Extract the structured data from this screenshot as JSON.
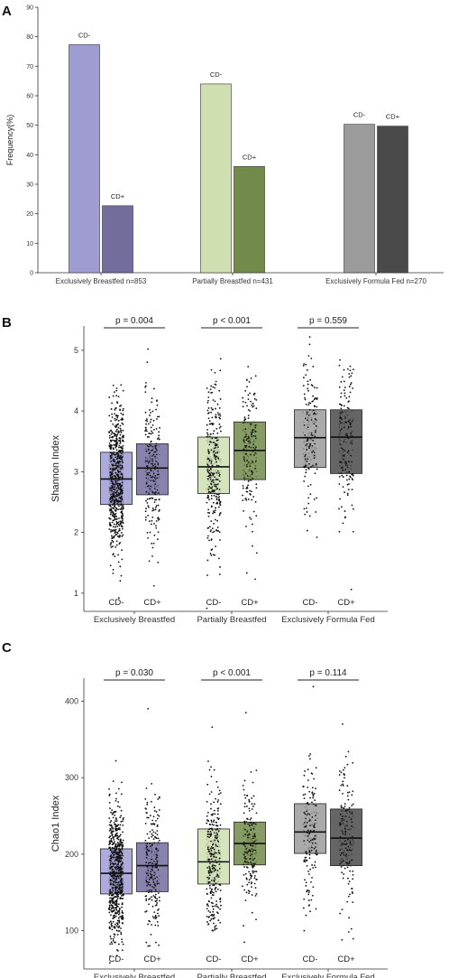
{
  "chart_data": [
    {
      "panel": "A",
      "type": "bar",
      "ylabel": "Frequency(%)",
      "ylim": [
        0,
        90
      ],
      "yticks": [
        0,
        10,
        20,
        30,
        40,
        50,
        60,
        70,
        80,
        90
      ],
      "categories": [
        "Exclusively Breastfed n=853",
        "Partially Breastfed n=431",
        "Exclusively Formula Fed n=270"
      ],
      "series": [
        {
          "name": "CD-",
          "values": [
            77.3,
            64.0,
            50.3
          ],
          "colors": [
            "#9f9cd2",
            "#cfdfb2",
            "#9b9b9b"
          ]
        },
        {
          "name": "CD+",
          "values": [
            22.7,
            36.0,
            49.7
          ],
          "colors": [
            "#736d9d",
            "#728a4a",
            "#4a4a4a"
          ]
        }
      ]
    },
    {
      "panel": "B",
      "type": "box",
      "ylabel": "Shannon Index",
      "ylim": [
        0.7,
        5.4
      ],
      "yticks": [
        1,
        2,
        3,
        4,
        5
      ],
      "groups": [
        "Exclusively Breastfed",
        "Partially Breastfed",
        "Exclusively Formula Fed"
      ],
      "subgroups": [
        "CD-",
        "CD+"
      ],
      "colors": [
        "#9f9cd2",
        "#736d9d",
        "#cfdfb2",
        "#728a4a",
        "#9b9b9b",
        "#4a4a4a"
      ],
      "boxes": [
        {
          "q1": 2.46,
          "median": 2.88,
          "q3": 3.32,
          "min": 0.92,
          "max": 4.43,
          "n": 659
        },
        {
          "q1": 2.62,
          "median": 3.06,
          "q3": 3.46,
          "min": 1.12,
          "max": 5.02,
          "n": 194
        },
        {
          "q1": 2.64,
          "median": 3.08,
          "q3": 3.57,
          "min": 0.75,
          "max": 4.86,
          "n": 276
        },
        {
          "q1": 2.87,
          "median": 3.35,
          "q3": 3.82,
          "min": 1.23,
          "max": 4.73,
          "n": 155
        },
        {
          "q1": 3.07,
          "median": 3.56,
          "q3": 4.02,
          "min": 1.92,
          "max": 5.22,
          "n": 136
        },
        {
          "q1": 2.97,
          "median": 3.57,
          "q3": 4.02,
          "min": 1.06,
          "max": 4.84,
          "n": 134
        }
      ],
      "pvalues": [
        "p = 0.004",
        "p < 0.001",
        "p = 0.559"
      ]
    },
    {
      "panel": "C",
      "type": "box",
      "ylabel": "Chao1 Index",
      "ylim": [
        50,
        430
      ],
      "yticks": [
        100,
        200,
        300,
        400
      ],
      "groups": [
        "Exclusively Breastfed",
        "Partially Breastfed",
        "Exclusively Formula Fed"
      ],
      "subgroups": [
        "CD-",
        "CD+"
      ],
      "colors": [
        "#9f9cd2",
        "#736d9d",
        "#cfdfb2",
        "#728a4a",
        "#9b9b9b",
        "#4a4a4a"
      ],
      "boxes": [
        {
          "q1": 148,
          "median": 175,
          "q3": 207,
          "min": 58,
          "max": 322,
          "n": 659
        },
        {
          "q1": 151,
          "median": 185,
          "q3": 215,
          "min": 80,
          "max": 390,
          "n": 194
        },
        {
          "q1": 161,
          "median": 190,
          "q3": 233,
          "min": 100,
          "max": 366,
          "n": 276
        },
        {
          "q1": 186,
          "median": 214,
          "q3": 242,
          "min": 85,
          "max": 385,
          "n": 155
        },
        {
          "q1": 201,
          "median": 229,
          "q3": 266,
          "min": 100,
          "max": 419,
          "n": 136
        },
        {
          "q1": 185,
          "median": 221,
          "q3": 259,
          "min": 88,
          "max": 370,
          "n": 134
        }
      ],
      "pvalues": [
        "p = 0.030",
        "p < 0.001",
        "p = 0.114"
      ]
    }
  ]
}
